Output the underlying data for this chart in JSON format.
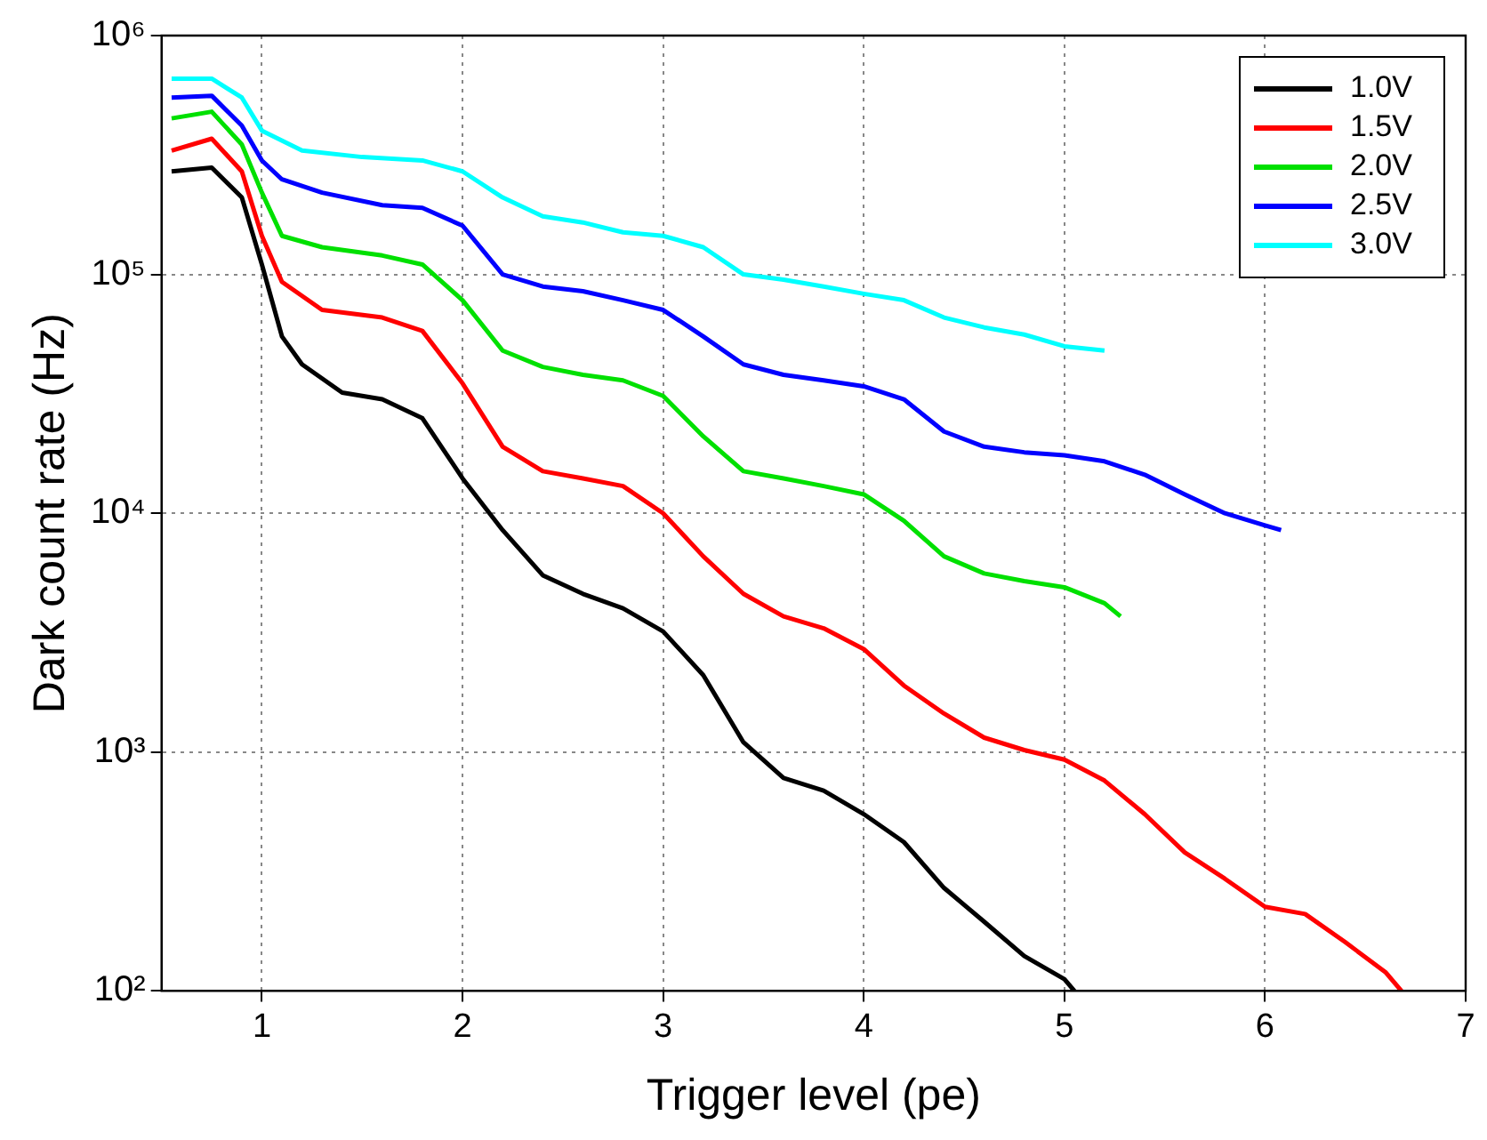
{
  "chart_data": {
    "type": "line",
    "xlabel": "Trigger level (pe)",
    "ylabel": "Dark count rate (Hz)",
    "xlim": [
      0.5,
      7
    ],
    "xticks": [
      1,
      2,
      3,
      4,
      5,
      6,
      7
    ],
    "ylim": [
      100,
      1000000
    ],
    "yticks": [
      {
        "value": 100,
        "label": "10²"
      },
      {
        "value": 1000,
        "label": "10³"
      },
      {
        "value": 10000,
        "label": "10⁴"
      },
      {
        "value": 100000,
        "label": "10⁵"
      },
      {
        "value": 1000000,
        "label": "10⁶"
      }
    ],
    "log": "y",
    "grid": true,
    "legend": "top right",
    "line_style": "solid",
    "marker": "none",
    "series": [
      {
        "name": "1.0V",
        "color": "#000000",
        "x": [
          0.55,
          0.75,
          0.9,
          1.0,
          1.1,
          1.2,
          1.4,
          1.6,
          1.8,
          2.0,
          2.2,
          2.4,
          2.6,
          2.8,
          3.0,
          3.2,
          3.4,
          3.6,
          3.8,
          4.0,
          4.2,
          4.4,
          4.6,
          4.8,
          5.0,
          5.05
        ],
        "values": [
          270000,
          280000,
          210000,
          110000,
          55000,
          42000,
          32000,
          30000,
          25000,
          14000,
          8500,
          5500,
          4600,
          4000,
          3200,
          2100,
          1100,
          780,
          690,
          550,
          420,
          270,
          195,
          140,
          112,
          100
        ]
      },
      {
        "name": "1.5V",
        "color": "#ff0000",
        "x": [
          0.55,
          0.75,
          0.9,
          1.0,
          1.1,
          1.3,
          1.6,
          1.8,
          2.0,
          2.2,
          2.4,
          2.6,
          2.8,
          3.0,
          3.2,
          3.4,
          3.6,
          3.8,
          4.0,
          4.2,
          4.4,
          4.6,
          4.8,
          5.0,
          5.2,
          5.4,
          5.6,
          5.8,
          6.0,
          6.2,
          6.4,
          6.6,
          6.68
        ],
        "values": [
          330000,
          370000,
          270000,
          145000,
          93000,
          71000,
          66000,
          58000,
          35000,
          19000,
          15000,
          14000,
          13000,
          10000,
          6600,
          4600,
          3700,
          3300,
          2700,
          1900,
          1450,
          1150,
          1020,
          930,
          760,
          550,
          380,
          295,
          225,
          210,
          160,
          120,
          100
        ]
      },
      {
        "name": "2.0V",
        "color": "#00e000",
        "x": [
          0.55,
          0.75,
          0.9,
          1.0,
          1.1,
          1.3,
          1.6,
          1.8,
          2.0,
          2.2,
          2.4,
          2.6,
          2.8,
          3.0,
          3.2,
          3.4,
          3.6,
          3.8,
          4.0,
          4.2,
          4.4,
          4.6,
          4.8,
          5.0,
          5.2,
          5.28
        ],
        "values": [
          450000,
          480000,
          350000,
          220000,
          145000,
          130000,
          120000,
          110000,
          78000,
          48000,
          41000,
          38000,
          36000,
          31000,
          21000,
          15000,
          14000,
          13000,
          12000,
          9300,
          6600,
          5600,
          5200,
          4900,
          4200,
          3700
        ]
      },
      {
        "name": "2.5V",
        "color": "#0000ff",
        "x": [
          0.55,
          0.75,
          0.9,
          1.0,
          1.1,
          1.3,
          1.6,
          1.8,
          2.0,
          2.2,
          2.4,
          2.6,
          2.8,
          3.0,
          3.2,
          3.4,
          3.6,
          3.8,
          4.0,
          4.2,
          4.4,
          4.6,
          4.8,
          5.0,
          5.2,
          5.4,
          5.6,
          5.8,
          6.0,
          6.08
        ],
        "values": [
          550000,
          560000,
          420000,
          300000,
          250000,
          220000,
          195000,
          190000,
          160000,
          100000,
          89000,
          85000,
          78000,
          71000,
          55000,
          42000,
          38000,
          36000,
          34000,
          30000,
          22000,
          19000,
          18000,
          17500,
          16500,
          14500,
          12000,
          10000,
          8900,
          8500
        ]
      },
      {
        "name": "3.0V",
        "color": "#00ffff",
        "x": [
          0.55,
          0.75,
          0.9,
          1.0,
          1.2,
          1.5,
          1.8,
          2.0,
          2.2,
          2.4,
          2.6,
          2.8,
          3.0,
          3.2,
          3.4,
          3.6,
          3.8,
          4.0,
          4.2,
          4.4,
          4.6,
          4.8,
          5.0,
          5.2
        ],
        "values": [
          660000,
          660000,
          550000,
          400000,
          330000,
          310000,
          300000,
          270000,
          210000,
          175000,
          165000,
          150000,
          145000,
          130000,
          100000,
          95000,
          89000,
          83000,
          78000,
          66000,
          60000,
          56000,
          50000,
          48000
        ]
      }
    ]
  }
}
